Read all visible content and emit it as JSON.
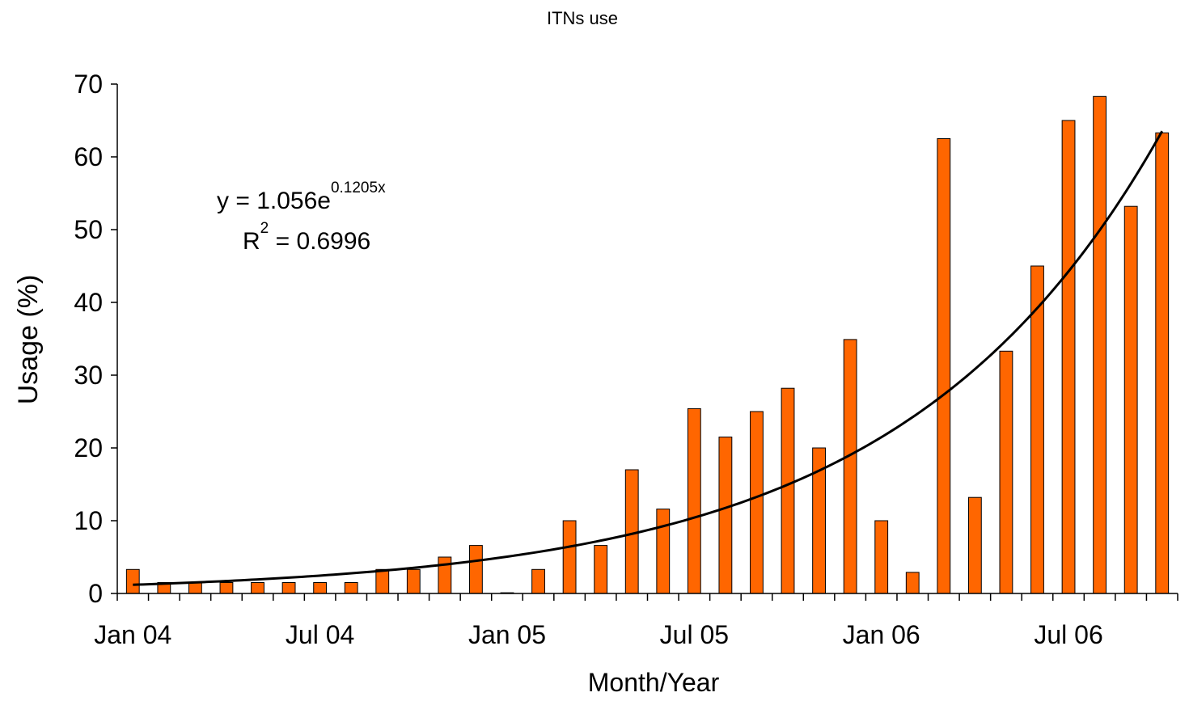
{
  "chart_data": {
    "type": "bar",
    "title": "ITNs use",
    "xlabel": "Month/Year",
    "ylabel": "Usage (%)",
    "ylim": [
      0,
      70
    ],
    "yticks": [
      "0",
      "10",
      "20",
      "30",
      "40",
      "50",
      "60",
      "70"
    ],
    "categories": [
      "Jan 04",
      "Feb 04",
      "Mar 04",
      "Apr 04",
      "May 04",
      "Jun 04",
      "Jul 04",
      "Aug 04",
      "Sep 04",
      "Oct 04",
      "Nov 04",
      "Dec 04",
      "Jan 05",
      "Feb 05",
      "Mar 05",
      "Apr 05",
      "May 05",
      "Jun 05",
      "Jul 05",
      "Aug 05",
      "Sep 05",
      "Oct 05",
      "Nov 05",
      "Dec 05",
      "Jan 06",
      "Feb 06",
      "Mar 06",
      "Apr 06",
      "May 06",
      "Jun 06",
      "Jul 06",
      "Aug 06",
      "Sep 06",
      "Oct 06"
    ],
    "xtick_labels": [
      {
        "index": 0,
        "label": "Jan 04"
      },
      {
        "index": 6,
        "label": "Jul 04"
      },
      {
        "index": 12,
        "label": "Jan 05"
      },
      {
        "index": 18,
        "label": "Jul 05"
      },
      {
        "index": 24,
        "label": "Jan 06"
      },
      {
        "index": 30,
        "label": "Jul 06"
      }
    ],
    "values": [
      3.3,
      1.5,
      1.5,
      1.5,
      1.5,
      1.5,
      1.5,
      1.5,
      3.3,
      3.3,
      5.0,
      6.6,
      0.1,
      3.3,
      10.0,
      6.6,
      17.0,
      11.6,
      25.4,
      21.5,
      25.0,
      28.2,
      20.0,
      34.9,
      10.0,
      2.9,
      62.5,
      13.2,
      33.3,
      45.0,
      65.0,
      68.3,
      53.2,
      63.3
    ],
    "bar_color": "#ff6600",
    "bar_stroke": "#000000",
    "trendline": {
      "type": "exponential",
      "a": 1.056,
      "b": 0.1205,
      "color": "#000000",
      "equation_label": "y = 1.056e",
      "equation_exponent": "0.1205x",
      "r2_prefix": "R",
      "r2_power": "2",
      "r2_value": " = 0.6996"
    },
    "grid": false,
    "legend": "none"
  }
}
